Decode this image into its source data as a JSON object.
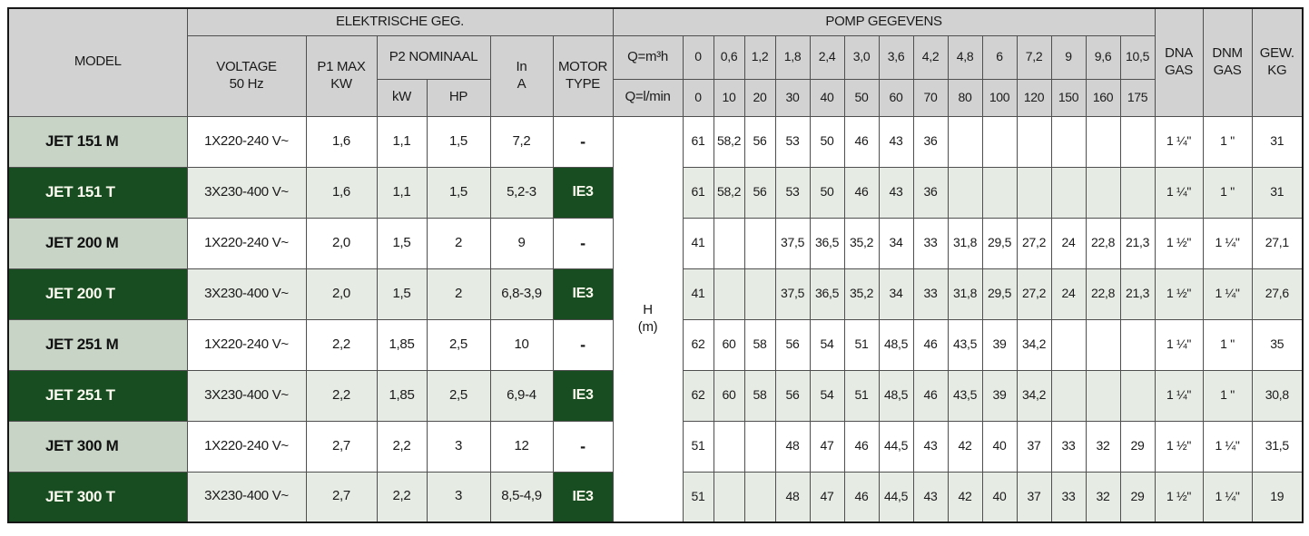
{
  "colors": {
    "header_bg": "#d2d2d2",
    "dark_green": "#174d20",
    "sage_green": "#c7d4c6",
    "row_tint": "#e6ebe4",
    "border": "#4f4f4f"
  },
  "header": {
    "model": "MODEL",
    "elektrische_geg": "ELEKTRISCHE GEG.",
    "pomp_gegevens": "POMP GEGEVENS",
    "voltage": "VOLTAGE\n50 Hz",
    "p1_max": "P1 MAX\nKW",
    "p2_nominaal": "P2 NOMINAAL",
    "p2_kw": "kW",
    "p2_hp": "HP",
    "in_a": "In\nA",
    "motor_type": "MOTOR\nTYPE",
    "q_m3h": "Q=m³h",
    "q_lmin": "Q=l/min",
    "dna_gas": "DNA\nGAS",
    "dnm_gas": "DNM\nGAS",
    "gew_kg": "GEW.\nKG",
    "h_m": "H\n(m)",
    "flow_m3h": [
      "0",
      "0,6",
      "1,2",
      "1,8",
      "2,4",
      "3,0",
      "3,6",
      "4,2",
      "4,8",
      "6",
      "7,2",
      "9",
      "9,6",
      "10,5"
    ],
    "flow_lmin": [
      "0",
      "10",
      "20",
      "30",
      "40",
      "50",
      "60",
      "70",
      "80",
      "100",
      "120",
      "150",
      "160",
      "175"
    ]
  },
  "rows": [
    {
      "model": "JET 151 M",
      "variant": "M",
      "voltage": "1X220-240 V~",
      "p1_max": "1,6",
      "p2_kw": "1,1",
      "p2_hp": "1,5",
      "in_a": "7,2",
      "motor_type": "-",
      "head": [
        "61",
        "58,2",
        "56",
        "53",
        "50",
        "46",
        "43",
        "36",
        "",
        "",
        "",
        "",
        "",
        ""
      ],
      "dna_gas": "1 ¼\"",
      "dnm_gas": "1 \"",
      "gew_kg": "31"
    },
    {
      "model": "JET 151 T",
      "variant": "T",
      "voltage": "3X230-400 V~",
      "p1_max": "1,6",
      "p2_kw": "1,1",
      "p2_hp": "1,5",
      "in_a": "5,2-3",
      "motor_type": "IE3",
      "head": [
        "61",
        "58,2",
        "56",
        "53",
        "50",
        "46",
        "43",
        "36",
        "",
        "",
        "",
        "",
        "",
        ""
      ],
      "dna_gas": "1 ¼\"",
      "dnm_gas": "1 \"",
      "gew_kg": "31"
    },
    {
      "model": "JET 200 M",
      "variant": "M",
      "voltage": "1X220-240 V~",
      "p1_max": "2,0",
      "p2_kw": "1,5",
      "p2_hp": "2",
      "in_a": "9",
      "motor_type": "-",
      "head": [
        "41",
        "",
        "",
        "37,5",
        "36,5",
        "35,2",
        "34",
        "33",
        "31,8",
        "29,5",
        "27,2",
        "24",
        "22,8",
        "21,3"
      ],
      "dna_gas": "1 ½\"",
      "dnm_gas": "1 ¼\"",
      "gew_kg": "27,1"
    },
    {
      "model": "JET 200 T",
      "variant": "T",
      "voltage": "3X230-400 V~",
      "p1_max": "2,0",
      "p2_kw": "1,5",
      "p2_hp": "2",
      "in_a": "6,8-3,9",
      "motor_type": "IE3",
      "head": [
        "41",
        "",
        "",
        "37,5",
        "36,5",
        "35,2",
        "34",
        "33",
        "31,8",
        "29,5",
        "27,2",
        "24",
        "22,8",
        "21,3"
      ],
      "dna_gas": "1 ½\"",
      "dnm_gas": "1 ¼\"",
      "gew_kg": "27,6"
    },
    {
      "model": "JET 251 M",
      "variant": "M",
      "voltage": "1X220-240 V~",
      "p1_max": "2,2",
      "p2_kw": "1,85",
      "p2_hp": "2,5",
      "in_a": "10",
      "motor_type": "-",
      "head": [
        "62",
        "60",
        "58",
        "56",
        "54",
        "51",
        "48,5",
        "46",
        "43,5",
        "39",
        "34,2",
        "",
        "",
        ""
      ],
      "dna_gas": "1 ¼\"",
      "dnm_gas": "1 \"",
      "gew_kg": "35"
    },
    {
      "model": "JET 251 T",
      "variant": "T",
      "voltage": "3X230-400 V~",
      "p1_max": "2,2",
      "p2_kw": "1,85",
      "p2_hp": "2,5",
      "in_a": "6,9-4",
      "motor_type": "IE3",
      "head": [
        "62",
        "60",
        "58",
        "56",
        "54",
        "51",
        "48,5",
        "46",
        "43,5",
        "39",
        "34,2",
        "",
        "",
        ""
      ],
      "dna_gas": "1 ¼\"",
      "dnm_gas": "1 \"",
      "gew_kg": "30,8"
    },
    {
      "model": "JET 300 M",
      "variant": "M",
      "voltage": "1X220-240 V~",
      "p1_max": "2,7",
      "p2_kw": "2,2",
      "p2_hp": "3",
      "in_a": "12",
      "motor_type": "-",
      "head": [
        "51",
        "",
        "",
        "48",
        "47",
        "46",
        "44,5",
        "43",
        "42",
        "40",
        "37",
        "33",
        "32",
        "29"
      ],
      "dna_gas": "1 ½\"",
      "dnm_gas": "1 ¼\"",
      "gew_kg": "31,5"
    },
    {
      "model": "JET 300 T",
      "variant": "T",
      "voltage": "3X230-400 V~",
      "p1_max": "2,7",
      "p2_kw": "2,2",
      "p2_hp": "3",
      "in_a": "8,5-4,9",
      "motor_type": "IE3",
      "head": [
        "51",
        "",
        "",
        "48",
        "47",
        "46",
        "44,5",
        "43",
        "42",
        "40",
        "37",
        "33",
        "32",
        "29"
      ],
      "dna_gas": "1 ½\"",
      "dnm_gas": "1 ¼\"",
      "gew_kg": "19"
    }
  ]
}
